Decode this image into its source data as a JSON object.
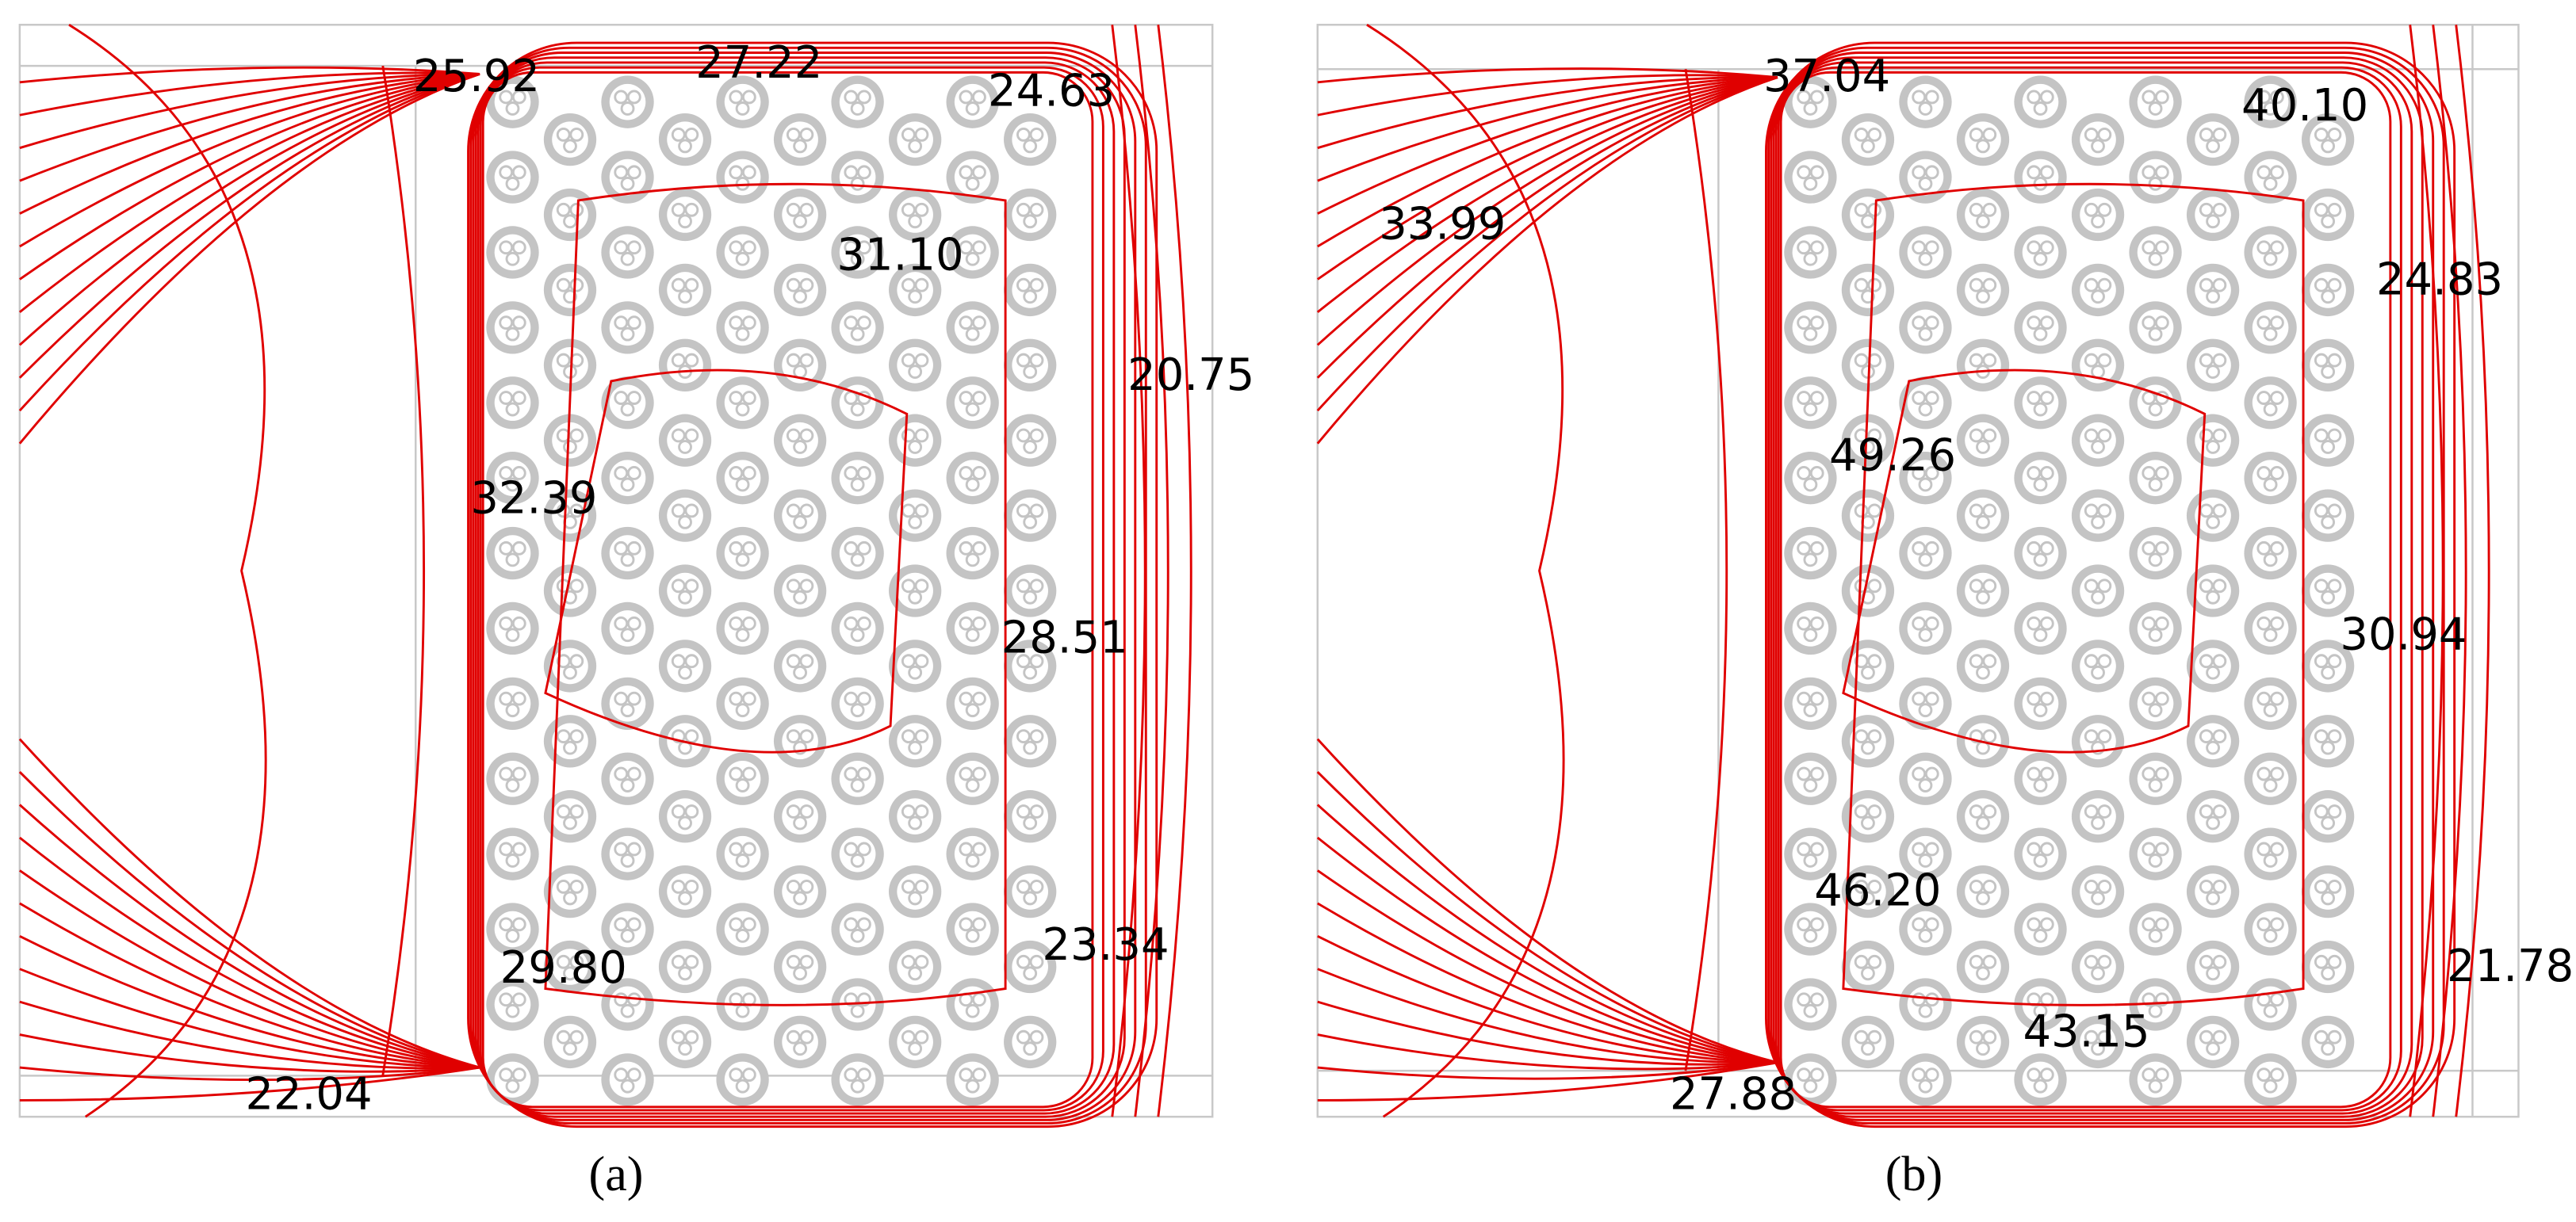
{
  "panels": [
    {
      "caption": "(a)",
      "labels": [
        "25.92",
        "27.22",
        "24.63",
        "31.10",
        "20.75",
        "32.39",
        "28.51",
        "23.34",
        "29.80",
        "22.04"
      ]
    },
    {
      "caption": "(b)",
      "labels": [
        "37.04",
        "40.10",
        "33.99",
        "24.83",
        "49.26",
        "30.94",
        "46.20",
        "21.78",
        "43.15",
        "27.88"
      ]
    }
  ]
}
